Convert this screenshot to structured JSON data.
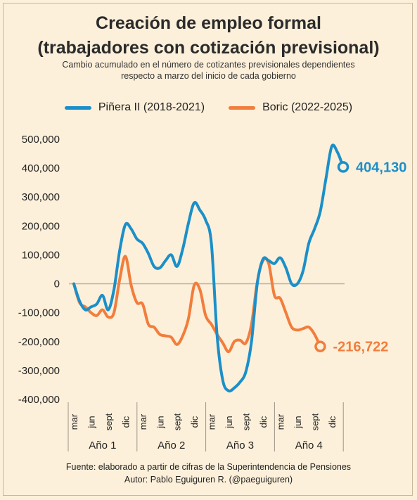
{
  "title_line1": "Creación de empleo formal",
  "title_line2": "(trabajadores con cotización previsional)",
  "subtitle_line1": "Cambio acumulado en el número de cotizantes previsionales dependientes",
  "subtitle_line2": "respecto a marzo del inicio de cada gobierno",
  "footer_line1": "Fuente: elaborado a partir de cifras de la Superintendencia de Pensiones",
  "footer_line2": "Autor: Pablo Eguiguren R. (@paeguiguren)",
  "colors": {
    "background": "#fdf0da",
    "pinera": "#1b8fc9",
    "boric": "#f27d3c"
  },
  "chart_data": {
    "type": "line",
    "ylim": [
      -400000,
      500000
    ],
    "yticks": [
      -400000,
      -300000,
      -200000,
      -100000,
      0,
      100000,
      200000,
      300000,
      400000,
      500000
    ],
    "ytick_labels": [
      "-400,000",
      "-300,000",
      "-200,000",
      "-100,000",
      "0",
      "100,000",
      "200,000",
      "300,000",
      "400,000",
      "500,000"
    ],
    "x_tick_labels": [
      "mar",
      "jun",
      "sept",
      "dic",
      "mar",
      "jun",
      "sept",
      "dic",
      "mar",
      "jun",
      "sept",
      "dic",
      "mar",
      "jun",
      "sept",
      "dic"
    ],
    "groups": [
      "Año 1",
      "Año 2",
      "Año 3",
      "Año 4"
    ],
    "legend_position": "top",
    "grid": false,
    "series": [
      {
        "name": "Piñera II (2018-2021)",
        "color": "#1b8fc9",
        "end_label": "404,130",
        "values": [
          0,
          -60000,
          -90000,
          -80000,
          -70000,
          -40000,
          -90000,
          -20000,
          115000,
          205000,
          190000,
          155000,
          140000,
          105000,
          60000,
          55000,
          80000,
          100000,
          60000,
          120000,
          210000,
          280000,
          255000,
          220000,
          140000,
          -180000,
          -335000,
          -370000,
          -360000,
          -340000,
          -305000,
          -200000,
          0,
          85000,
          80000,
          70000,
          90000,
          55000,
          0,
          0,
          45000,
          140000,
          190000,
          250000,
          365000,
          475000,
          455000,
          404130
        ]
      },
      {
        "name": "Boric (2022-2025)",
        "color": "#f27d3c",
        "end_label": "-216,722",
        "values": [
          0,
          -65000,
          -80000,
          -100000,
          -110000,
          -90000,
          -115000,
          -100000,
          15000,
          95000,
          -5000,
          -65000,
          -70000,
          -140000,
          -150000,
          -175000,
          -180000,
          -185000,
          -210000,
          -180000,
          -120000,
          -5000,
          -20000,
          -110000,
          -140000,
          -175000,
          -205000,
          -235000,
          -200000,
          -195000,
          -205000,
          -140000,
          5000,
          80000,
          70000,
          -40000,
          -50000,
          -100000,
          -150000,
          -160000,
          -155000,
          -150000,
          -175000,
          -216722
        ]
      }
    ]
  }
}
